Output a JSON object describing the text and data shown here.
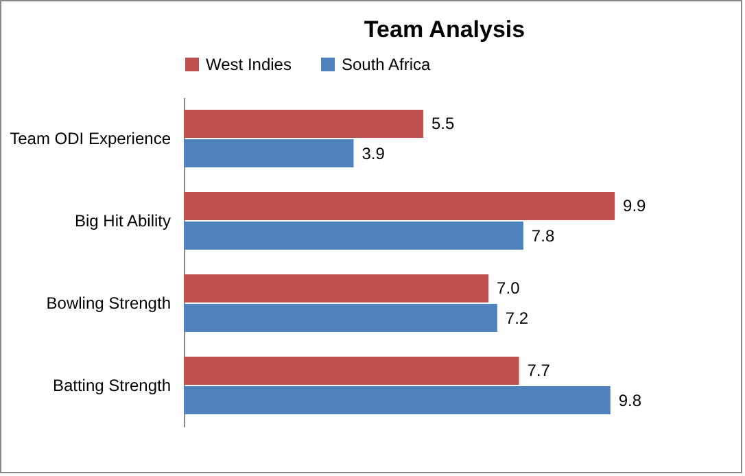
{
  "chart_data": {
    "type": "bar",
    "title": "Team Analysis",
    "orientation": "horizontal",
    "legend": "top",
    "categories": [
      "Team ODI Experience",
      "Big Hit Ability",
      "Bowling Strength",
      "Batting Strength"
    ],
    "series": [
      {
        "name": "West Indies",
        "color": "#c0504d",
        "values": [
          5.5,
          9.9,
          7.0,
          7.7
        ],
        "value_labels": [
          "5.5",
          "9.9",
          "7.0",
          "7.7"
        ]
      },
      {
        "name": "South Africa",
        "color": "#4f81bd",
        "values": [
          3.9,
          7.8,
          7.2,
          9.8
        ],
        "value_labels": [
          "3.9",
          "7.8",
          "7.2",
          "9.8"
        ]
      }
    ]
  }
}
